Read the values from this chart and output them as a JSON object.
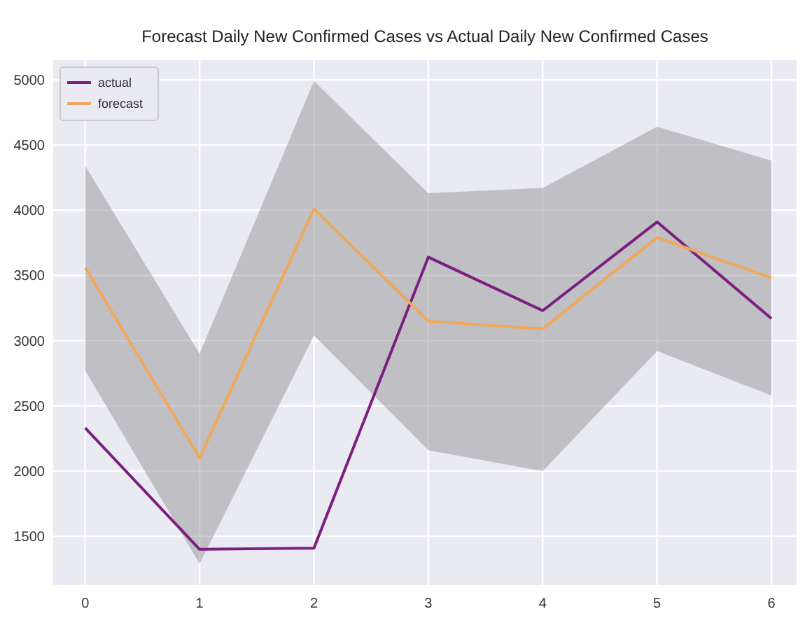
{
  "chart_data": {
    "type": "line",
    "title": "Forecast Daily New Confirmed Cases vs Actual Daily New Confirmed Cases",
    "x": [
      0,
      1,
      2,
      3,
      4,
      5,
      6
    ],
    "series": [
      {
        "name": "actual",
        "color": "#7b1f7e",
        "values": [
          2330,
          1400,
          1410,
          3640,
          3230,
          3910,
          3170
        ]
      },
      {
        "name": "forecast",
        "color": "#f0a85a",
        "values": [
          3560,
          2100,
          4010,
          3150,
          3090,
          3790,
          3480
        ],
        "lower": [
          2770,
          1290,
          3040,
          2160,
          2000,
          2920,
          2580
        ],
        "upper": [
          4340,
          2900,
          4990,
          4130,
          4170,
          4640,
          4380
        ]
      }
    ],
    "xlim": [
      -0.28,
      6.22
    ],
    "xticks": [
      0,
      1,
      2,
      3,
      4,
      5,
      6
    ],
    "ylim": [
      1125,
      5150
    ],
    "yticks": [
      1500,
      2000,
      2500,
      3000,
      3500,
      4000,
      4500,
      5000
    ],
    "grid": true,
    "legend": "top left",
    "marker": "none",
    "line_style": "solid"
  }
}
